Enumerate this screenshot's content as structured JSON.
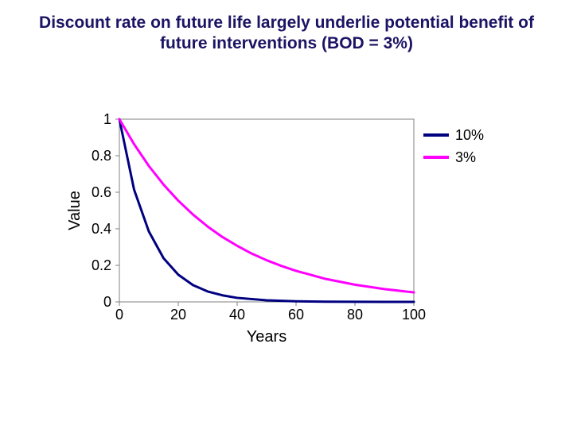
{
  "title": "Discount rate on future life largely underlie potential benefit of future interventions (BOD = 3%)",
  "title_fontsize": 21,
  "title_color": "#1b1464",
  "background_color": "#ffffff",
  "chart": {
    "type": "line",
    "xlabel": "Years",
    "ylabel": "Value",
    "label_fontsize": 20,
    "tick_fontsize": 18,
    "xlim": [
      0,
      100
    ],
    "ylim": [
      0,
      1
    ],
    "xtick_step": 20,
    "ytick_step": 0.2,
    "xticks": [
      0,
      20,
      40,
      60,
      80,
      100
    ],
    "yticks": [
      0,
      0.2,
      0.4,
      0.6,
      0.8,
      1
    ],
    "plot_background": "#ffffff",
    "plot_border_color": "#808080",
    "tick_color": "#808080",
    "text_color": "#000000",
    "line_width": 3,
    "series": [
      {
        "name": "10%",
        "color": "#000080",
        "x": [
          0,
          5,
          10,
          15,
          20,
          25,
          30,
          35,
          40,
          50,
          60,
          70,
          80,
          90,
          100
        ],
        "y": [
          1.0,
          0.614,
          0.386,
          0.239,
          0.149,
          0.092,
          0.057,
          0.036,
          0.022,
          0.0085,
          0.0033,
          0.0013,
          0.0005,
          0.0002,
          0.0001
        ]
      },
      {
        "name": "3%",
        "color": "#ff00ff",
        "x": [
          0,
          5,
          10,
          15,
          20,
          25,
          30,
          35,
          40,
          45,
          50,
          55,
          60,
          70,
          80,
          90,
          100
        ],
        "y": [
          1.0,
          0.863,
          0.744,
          0.642,
          0.554,
          0.478,
          0.412,
          0.355,
          0.307,
          0.264,
          0.228,
          0.197,
          0.17,
          0.126,
          0.094,
          0.07,
          0.052
        ]
      }
    ],
    "legend": {
      "position": "right",
      "fontsize": 18,
      "swatch_width": 32,
      "swatch_line_width": 4
    }
  }
}
